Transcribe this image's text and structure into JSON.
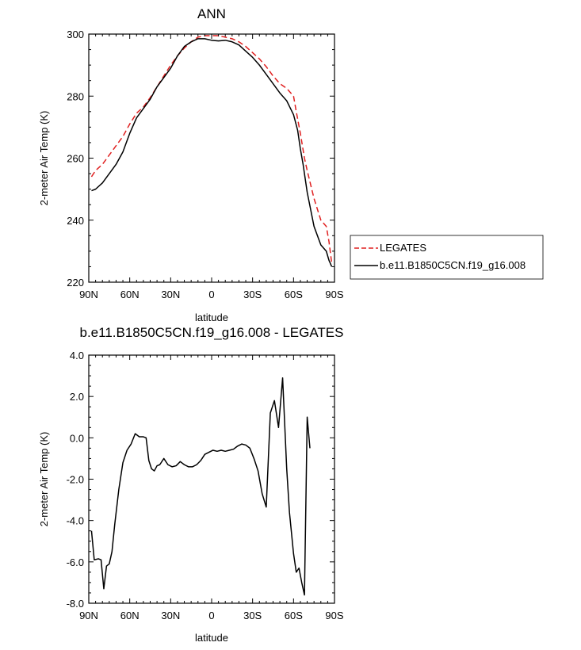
{
  "chart_data": [
    {
      "type": "line",
      "title": "ANN",
      "xlabel": "latitude",
      "ylabel": "2-meter Air Temp (K)",
      "xlim": [
        -90,
        90
      ],
      "ylim": [
        220,
        300
      ],
      "x_ticks": [
        -90,
        -60,
        -30,
        0,
        30,
        60,
        90
      ],
      "x_tick_labels": [
        "90N",
        "60N",
        "30N",
        "0",
        "30S",
        "60S",
        "90S"
      ],
      "y_ticks": [
        220,
        240,
        260,
        280,
        300
      ],
      "y_tick_labels": [
        "220",
        "240",
        "260",
        "280",
        "300"
      ],
      "legend_placement": "right",
      "series": [
        {
          "name": "LEGATES",
          "color": "#e02020",
          "dash": "dashed",
          "x": [
            -88,
            -85,
            -80,
            -75,
            -70,
            -65,
            -60,
            -55,
            -50,
            -45,
            -40,
            -35,
            -30,
            -25,
            -20,
            -15,
            -10,
            -5,
            0,
            5,
            10,
            15,
            20,
            25,
            30,
            35,
            40,
            45,
            50,
            55,
            60,
            62,
            65,
            68,
            70,
            75,
            80,
            84,
            86,
            88
          ],
          "y": [
            254,
            256,
            258,
            261,
            264,
            267,
            271,
            274.5,
            276.5,
            279.5,
            283,
            286.5,
            290,
            293,
            295.5,
            297.5,
            299,
            299.5,
            299.5,
            299.5,
            299,
            298.5,
            297.5,
            296,
            294,
            292,
            289.5,
            286.5,
            284,
            282.5,
            280,
            275,
            268,
            260,
            256,
            247,
            240,
            238,
            233,
            226
          ]
        },
        {
          "name": "b.e11.B1850C5CN.f19_g16.008",
          "color": "#000000",
          "dash": "solid",
          "x": [
            -88,
            -85,
            -80,
            -75,
            -70,
            -65,
            -60,
            -55,
            -50,
            -45,
            -40,
            -35,
            -30,
            -25,
            -20,
            -15,
            -10,
            -5,
            0,
            5,
            10,
            15,
            20,
            25,
            30,
            35,
            40,
            45,
            50,
            55,
            60,
            63,
            65,
            67,
            70,
            75,
            80,
            84,
            86,
            88
          ],
          "y": [
            249.5,
            250,
            252,
            255,
            258,
            262,
            268,
            273,
            276,
            279,
            283,
            286,
            289,
            293,
            296,
            297.5,
            298.5,
            298.5,
            298,
            297.8,
            298,
            297.5,
            296.5,
            294.5,
            292.5,
            290,
            287,
            284,
            281,
            278.5,
            274,
            269,
            263,
            258,
            249,
            238,
            232,
            230,
            227,
            225
          ]
        }
      ]
    },
    {
      "type": "line",
      "title": "b.e11.B1850C5CN.f19_g16.008 - LEGATES",
      "xlabel": "latitude",
      "ylabel": "2-meter Air Temp (K)",
      "xlim": [
        -90,
        90
      ],
      "ylim": [
        -8.0,
        4.0
      ],
      "x_ticks": [
        -90,
        -60,
        -30,
        0,
        30,
        60,
        90
      ],
      "x_tick_labels": [
        "90N",
        "60N",
        "30N",
        "0",
        "30S",
        "60S",
        "90S"
      ],
      "y_ticks": [
        -8.0,
        -6.0,
        -4.0,
        -2.0,
        0.0,
        2.0,
        4.0
      ],
      "y_tick_labels": [
        "-8.0",
        "-6.0",
        "-4.0",
        "-2.0",
        "0.0",
        "2.0",
        "4.0"
      ],
      "series": [
        {
          "color": "#000000",
          "dash": "solid",
          "x": [
            -88,
            -86,
            -83,
            -81,
            -79,
            -77,
            -75,
            -73,
            -71,
            -68,
            -65,
            -62,
            -59,
            -56,
            -53,
            -50,
            -48,
            -46,
            -44,
            -42,
            -40,
            -38,
            -35,
            -32,
            -29,
            -26,
            -23,
            -20,
            -17,
            -14,
            -11,
            -8,
            -5,
            -2,
            1,
            4,
            7,
            10,
            13,
            16,
            19,
            22,
            25,
            28,
            31,
            34,
            37,
            40,
            43,
            46,
            49,
            52,
            55,
            57,
            60,
            62,
            64,
            66,
            68,
            70,
            72,
            74,
            76,
            78,
            80,
            82,
            84,
            86,
            88
          ],
          "y": [
            -4.5,
            -5.9,
            -5.85,
            -5.9,
            -7.3,
            -6.2,
            -6.1,
            -5.5,
            -4.2,
            -2.5,
            -1.2,
            -0.6,
            -0.3,
            0.2,
            0.05,
            0.05,
            0.0,
            -1.1,
            -1.5,
            -1.6,
            -1.35,
            -1.3,
            -1.0,
            -1.3,
            -1.4,
            -1.35,
            -1.15,
            -1.3,
            -1.4,
            -1.4,
            -1.3,
            -1.1,
            -0.8,
            -0.7,
            -0.6,
            -0.65,
            -0.6,
            -0.65,
            -0.6,
            -0.55,
            -0.4,
            -0.3,
            -0.35,
            -0.5,
            -1.0,
            -1.6,
            -2.7,
            -3.35,
            1.2,
            1.8,
            0.5,
            2.9,
            -1.5,
            -3.6,
            -5.6,
            -6.5,
            -6.3,
            -7.0,
            -7.6,
            1.0,
            -0.5,
            null,
            null,
            null,
            null,
            null,
            null,
            null,
            null
          ]
        }
      ]
    }
  ]
}
